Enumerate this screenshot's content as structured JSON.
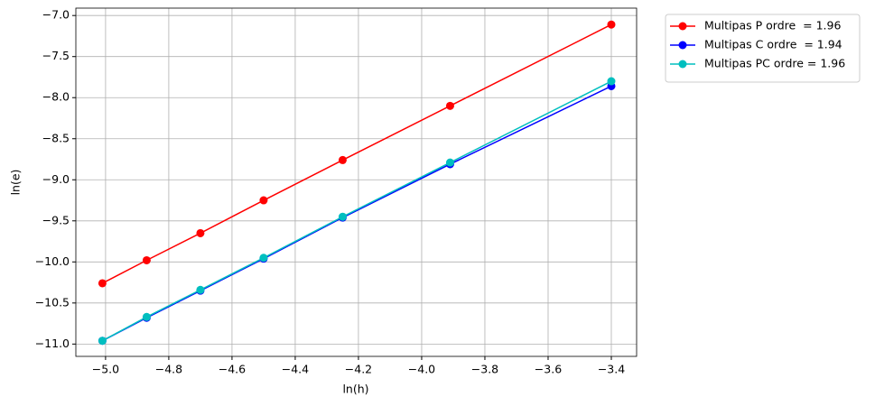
{
  "chart_data": {
    "type": "line",
    "xlabel": "ln(h)",
    "ylabel": "ln(e)",
    "x": [
      -5.01,
      -4.87,
      -4.7,
      -4.5,
      -4.25,
      -3.91,
      -3.4
    ],
    "series": [
      {
        "name": "Multipas P ordre  = 1.96",
        "color": "#ff0000",
        "values": [
          -10.26,
          -9.98,
          -9.65,
          -9.25,
          -8.76,
          -8.1,
          -7.11
        ]
      },
      {
        "name": "Multipas C ordre  = 1.94",
        "color": "#0000ff",
        "values": [
          -10.96,
          -10.68,
          -10.35,
          -9.96,
          -9.46,
          -8.81,
          -7.86
        ]
      },
      {
        "name": "Multipas PC ordre = 1.96",
        "color": "#00bfbf",
        "values": [
          -10.96,
          -10.67,
          -10.34,
          -9.95,
          -9.45,
          -8.79,
          -7.8
        ]
      }
    ],
    "xlim": [
      -5.094,
      -3.32
    ],
    "ylim": [
      -11.15,
      -6.91
    ],
    "xticks": [
      {
        "value": -5.0,
        "label": "−5.0"
      },
      {
        "value": -4.8,
        "label": "−4.8"
      },
      {
        "value": -4.6,
        "label": "−4.6"
      },
      {
        "value": -4.4,
        "label": "−4.4"
      },
      {
        "value": -4.2,
        "label": "−4.2"
      },
      {
        "value": -4.0,
        "label": "−4.0"
      },
      {
        "value": -3.8,
        "label": "−3.8"
      },
      {
        "value": -3.6,
        "label": "−3.6"
      },
      {
        "value": -3.4,
        "label": "−3.4"
      }
    ],
    "yticks": [
      {
        "value": -11.0,
        "label": "−11.0"
      },
      {
        "value": -10.5,
        "label": "−10.5"
      },
      {
        "value": -10.0,
        "label": "−10.0"
      },
      {
        "value": -9.5,
        "label": "−9.5"
      },
      {
        "value": -9.0,
        "label": "−9.0"
      },
      {
        "value": -8.5,
        "label": "−8.5"
      },
      {
        "value": -8.0,
        "label": "−8.0"
      },
      {
        "value": -7.5,
        "label": "−7.5"
      },
      {
        "value": -7.0,
        "label": "−7.0"
      }
    ],
    "grid": true,
    "legend": "outside-upper-right"
  }
}
